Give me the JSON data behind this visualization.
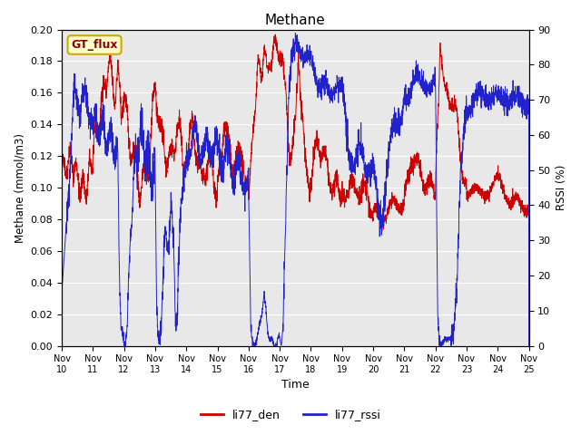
{
  "title": "Methane",
  "ylabel_left": "Methane (mmol/m3)",
  "ylabel_right": "RSSI (%)",
  "xlabel": "Time",
  "ylim_left": [
    0.0,
    0.2
  ],
  "ylim_right": [
    0,
    90
  ],
  "legend_label_red": "li77_den",
  "legend_label_blue": "li77_rssi",
  "gt_flux_label": "GT_flux",
  "plot_bg_color": "#e8e8e8",
  "fig_bg_color": "#ffffff",
  "red_color": "#cc0000",
  "blue_color": "#2222cc",
  "xtick_labels": [
    "Nov 10",
    "Nov 11",
    "Nov 12",
    "Nov 13",
    "Nov 14",
    "Nov 15",
    "Nov 16",
    "Nov 17",
    "Nov 18",
    "Nov 19",
    "Nov 20",
    "Nov 21",
    "Nov 22",
    "Nov 23",
    "Nov 24",
    "Nov 25"
  ],
  "yticks_left": [
    0.0,
    0.02,
    0.04,
    0.06,
    0.08,
    0.1,
    0.12,
    0.14,
    0.16,
    0.18,
    0.2
  ],
  "yticks_right": [
    0,
    10,
    20,
    30,
    40,
    50,
    60,
    70,
    80,
    90
  ]
}
